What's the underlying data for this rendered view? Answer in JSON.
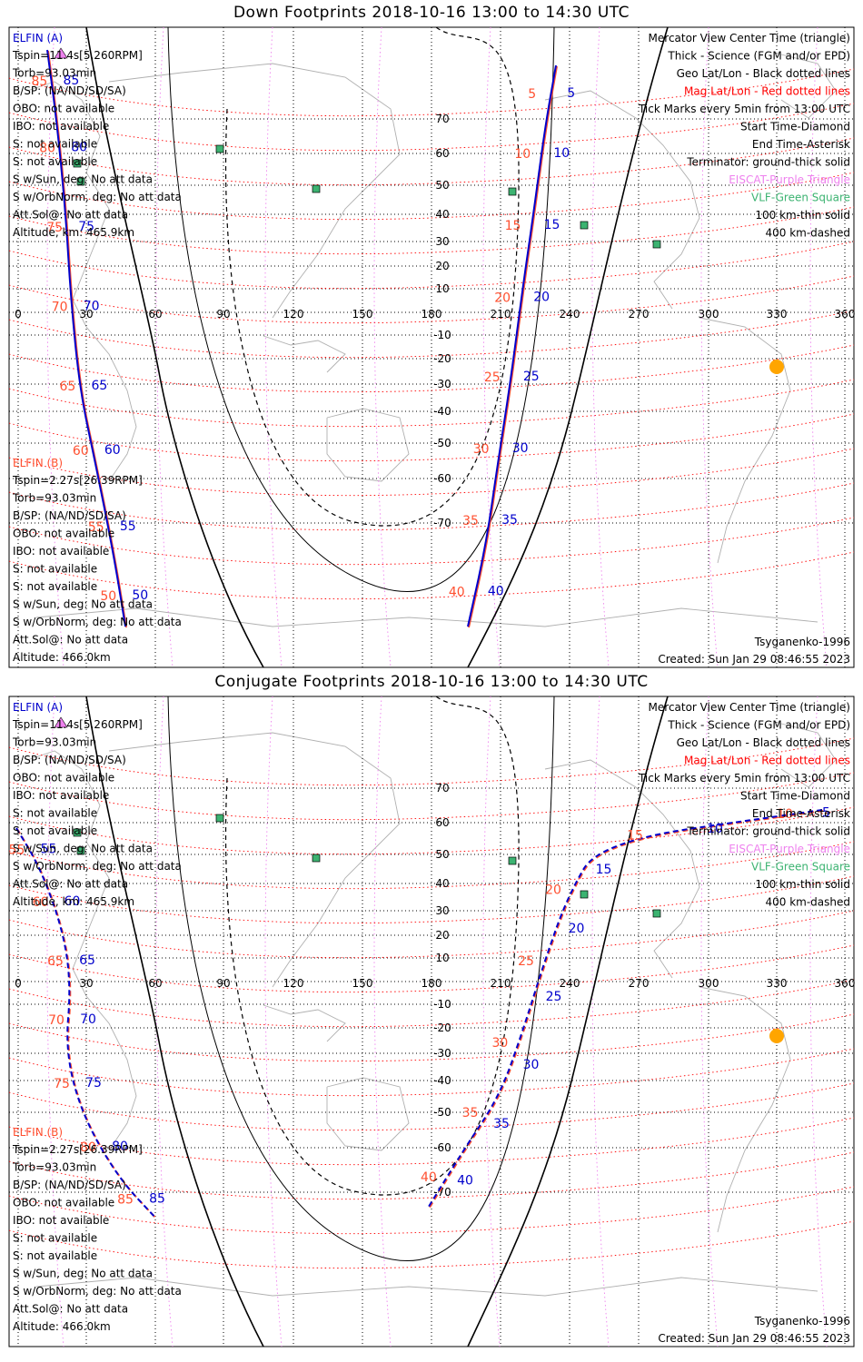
{
  "panels": [
    {
      "title": "Down Footprints 2018-10-16 13:00 to 14:30 UTC",
      "elfin_a": {
        "header": "ELFIN (A)",
        "lines": [
          "Tspin=11.4s[5.260RPM]",
          "Torb=93.03min",
          "B/SP: (NA/ND/SD/SA)",
          "OBO: not available",
          "IBO: not available",
          "S: not available",
          "S: not available",
          "S w/Sun, deg: No att data",
          "S w/OrbNorm, deg: No att data",
          "Att.Sol@: No att data",
          "Altitude, km: 465.9km"
        ]
      },
      "elfin_b": {
        "header": "ELFIN (B)",
        "lines": [
          "Tspin=2.27s[26.39RPM]",
          "Torb=93.03min",
          "B/SP: (NA/ND/SD/SA)",
          "OBO: not available",
          "IBO: not available",
          "S: not available",
          "S: not available",
          "S w/Sun, deg: No att data",
          "S w/OrbNorm, deg: No att data",
          "Att.Sol@: No att data",
          "Altitude: 466.0km"
        ]
      },
      "footer_left": "Tsyganenko-1996",
      "footer_right": "Created: Sun Jan 29 08:46:55 2023",
      "tracks": {
        "a_left": {
          "labels": [
            "85",
            "80",
            "75",
            "70",
            "65",
            "60",
            "55",
            "50"
          ]
        },
        "b_left": {
          "labels": [
            "85",
            "80",
            "75",
            "70",
            "65",
            "60",
            "55",
            "50"
          ]
        },
        "a_right": {
          "labels": [
            "5",
            "10",
            "15",
            "20",
            "25",
            "30",
            "35",
            "40"
          ]
        },
        "b_right": {
          "labels": [
            "5",
            "10",
            "15",
            "20",
            "25",
            "30",
            "35",
            "40"
          ]
        }
      }
    },
    {
      "title": "Conjugate Footprints 2018-10-16 13:00 to 14:30 UTC",
      "elfin_a": {
        "header": "ELFIN (A)",
        "lines": [
          "Tspin=11.4s[5.260RPM]",
          "Torb=93.03min",
          "B/SP: (NA/ND/SD/SA)",
          "OBO: not available",
          "IBO: not available",
          "S: not available",
          "S: not available",
          "S w/Sun, deg: No att data",
          "S w/OrbNorm, deg: No att data",
          "Att.Sol@: No att data",
          "Altitude, km: 465.9km"
        ]
      },
      "elfin_b": {
        "header": "ELFIN (B)",
        "lines": [
          "Tspin=2.27s[26.39RPM]",
          "Torb=93.03min",
          "B/SP: (NA/ND/SD/SA)",
          "OBO: not available",
          "IBO: not available",
          "S: not available",
          "S: not available",
          "S w/Sun, deg: No att data",
          "S w/OrbNorm, deg: No att data",
          "Att.Sol@: No att data",
          "Altitude: 466.0km"
        ]
      },
      "footer_left": "Tsyganenko-1996",
      "footer_right": "Created: Sun Jan 29 08:46:55 2023",
      "tracks": {
        "a_left": {
          "labels": [
            "55",
            "60",
            "65",
            "70",
            "75",
            "80",
            "85"
          ]
        },
        "b_left": {
          "labels": [
            "55",
            "60",
            "65",
            "70",
            "75",
            "80",
            "85"
          ]
        },
        "a_right": {
          "labels": [
            "5",
            "10",
            "15",
            "20",
            "25",
            "30",
            "35",
            "40"
          ]
        },
        "b_right": {
          "labels": [
            "10",
            "15",
            "20",
            "25",
            "30",
            "35",
            "40"
          ]
        }
      }
    }
  ],
  "legend": [
    {
      "text": "Mercator View Center Time (triangle)",
      "color": "#000000"
    },
    {
      "text": "Thick - Science (FGM and/or EPD)",
      "color": "#000000"
    },
    {
      "text": "Geo Lat/Lon - Black dotted lines",
      "color": "#000000"
    },
    {
      "text": "Mag Lat/Lon - Red dotted lines",
      "color": "#ff0000"
    },
    {
      "text": "Tick Marks every 5min from 13:00 UTC",
      "color": "#000000"
    },
    {
      "text": "Start Time-Diamond",
      "color": "#000000"
    },
    {
      "text": "End Time-Asterisk",
      "color": "#000000"
    },
    {
      "text": "Terminator: ground-thick solid",
      "color": "#000000"
    },
    {
      "text": "EISCAT-Purple Triangle",
      "color": "#ee82ee"
    },
    {
      "text": "VLF-Green Square",
      "color": "#3cb371"
    },
    {
      "text": "100 km-thin solid",
      "color": "#000000"
    },
    {
      "text": "400 km-dashed",
      "color": "#000000"
    }
  ],
  "axes": {
    "lon_ticks": [
      "0",
      "30",
      "60",
      "90",
      "120",
      "150",
      "180",
      "210",
      "240",
      "270",
      "300",
      "330",
      "360"
    ],
    "lat_ticks": [
      "70",
      "60",
      "50",
      "40",
      "30",
      "20",
      "10",
      "-10",
      "-20",
      "-30",
      "-40",
      "-50",
      "-60",
      "-70"
    ]
  },
  "colors": {
    "elfin_a": "#0000cc",
    "elfin_b": "#ff5030",
    "mag_grid": "#ff0000",
    "geo_grid": "#000000",
    "coast": "#b0b0b0",
    "sun": "#ffa500",
    "vlf": "#3cb371",
    "eiscat": "#ee82ee"
  },
  "icons": {
    "sun": "sun-icon",
    "vlf": "vlf-station-icon",
    "eiscat": "eiscat-triangle-icon"
  }
}
